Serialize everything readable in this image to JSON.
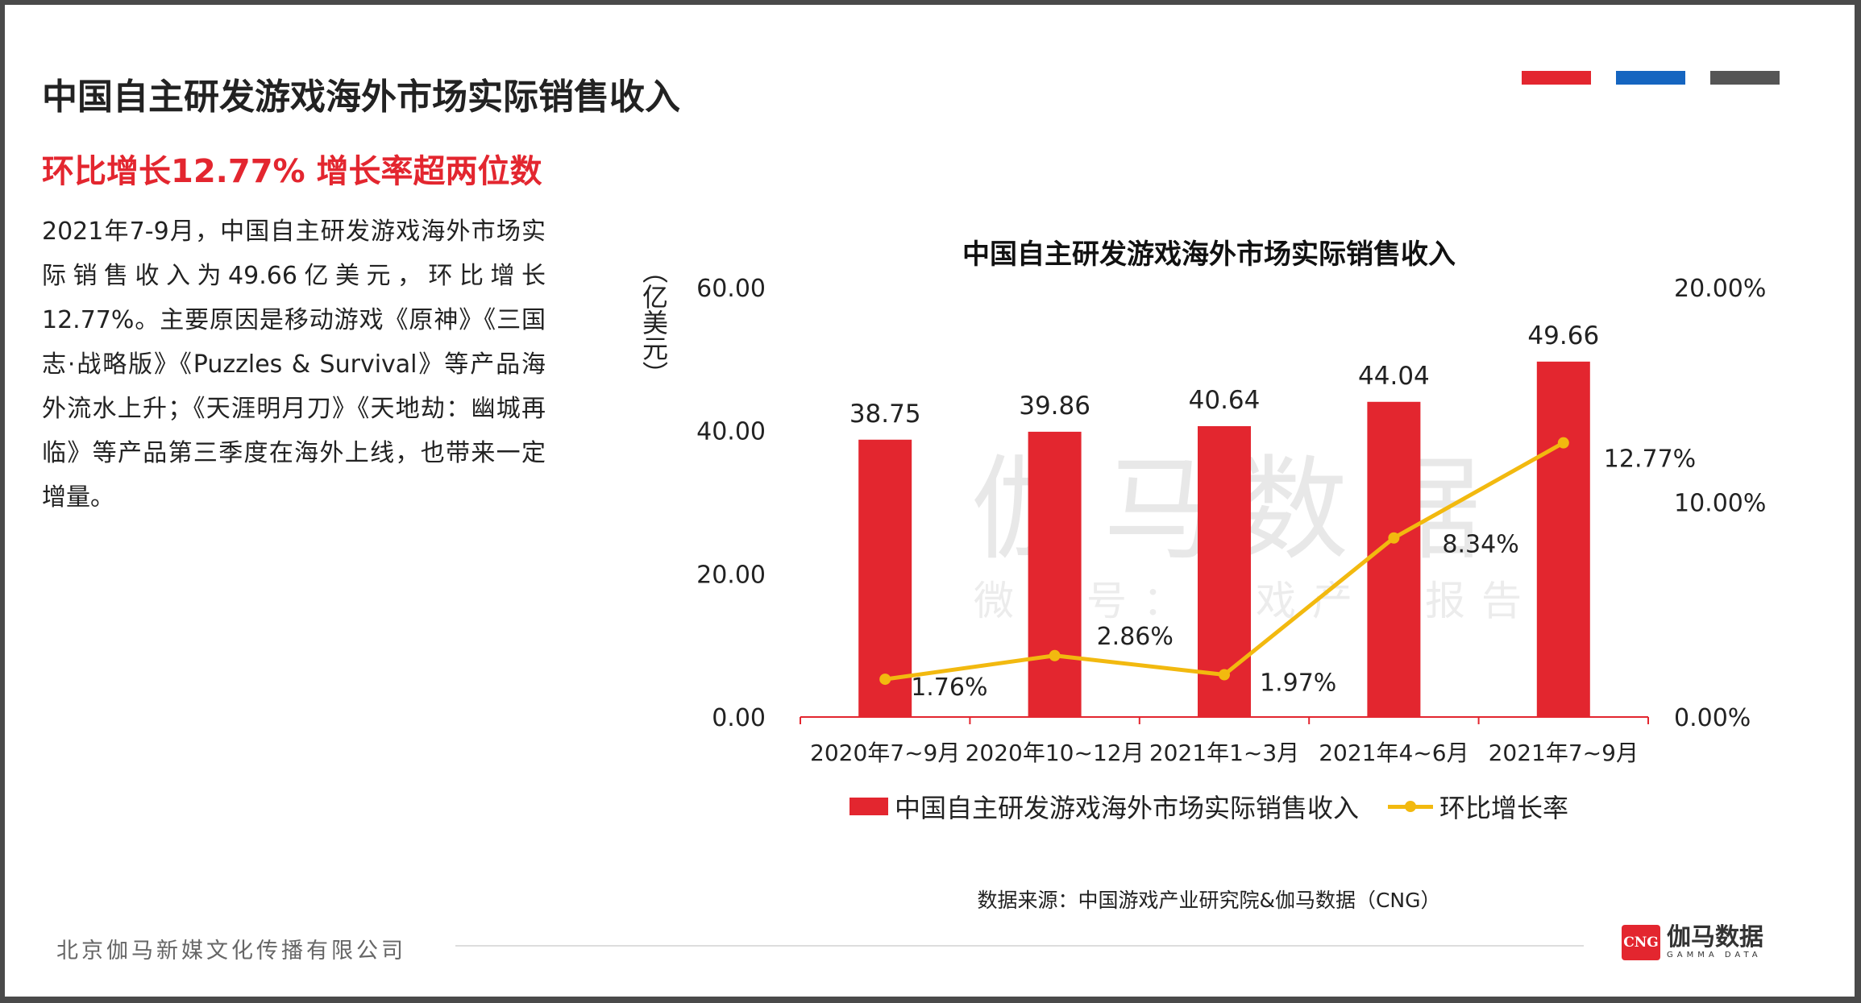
{
  "header": {
    "title": "中国自主研发游戏海外市场实际销售收入",
    "subtitle": "环比增长12.77%  增长率超两位数"
  },
  "brand_colors": {
    "red": "#e3262f",
    "blue": "#1565c0",
    "gray": "#555555",
    "line_yellow": "#f2b90f"
  },
  "body_text": "2021年7-9月，中国自主研发游戏海外市场实际销售收入为49.66亿美元，环比增长12.77%。主要原因是移动游戏《原神》《三国志·战略版》《Puzzles & Survival》等产品海外流水上升；《天涯明月刀》《天地劫：幽城再临》等产品第三季度在海外上线，也带来一定增量。",
  "chart_data": {
    "type": "bar",
    "title": "中国自主研发游戏海外市场实际销售收入",
    "ylabel": "（亿美元）",
    "xlabel": "",
    "categories": [
      "2020年7~9月",
      "2020年10~12月",
      "2021年1~3月",
      "2021年4~6月",
      "2021年7~9月"
    ],
    "series": [
      {
        "name": "中国自主研发游戏海外市场实际销售收入",
        "type": "bar",
        "axis": "left",
        "color": "#e3262f",
        "values": [
          38.75,
          39.86,
          40.64,
          44.04,
          49.66
        ],
        "labels": [
          "38.75",
          "39.86",
          "40.64",
          "44.04",
          "49.66"
        ]
      },
      {
        "name": "环比增长率",
        "type": "line",
        "axis": "right",
        "color": "#f2b90f",
        "values": [
          1.76,
          2.86,
          1.97,
          8.34,
          12.77
        ],
        "labels": [
          "1.76%",
          "2.86%",
          "1.97%",
          "8.34%",
          "12.77%"
        ]
      }
    ],
    "ylim": [
      0,
      60
    ],
    "y_ticks": [
      "0.00",
      "20.00",
      "40.00",
      "60.00"
    ],
    "y_tick_values": [
      0,
      20,
      40,
      60
    ],
    "y2lim": [
      0,
      20
    ],
    "y2_ticks": [
      "0.00%",
      "10.00%",
      "20.00%"
    ],
    "y2_tick_values": [
      0,
      10,
      20
    ],
    "grid": false,
    "legend_position": "bottom"
  },
  "watermark": {
    "main": "伽马数据",
    "sub": "微信号：游戏产业报告"
  },
  "source": "数据来源：中国游戏产业研究院&伽马数据（CNG）",
  "footer": {
    "company": "北京伽马新媒文化传播有限公司",
    "logo_mark": "CNG",
    "logo_cn": "伽马数据",
    "logo_en": "GAMMA DATA"
  }
}
